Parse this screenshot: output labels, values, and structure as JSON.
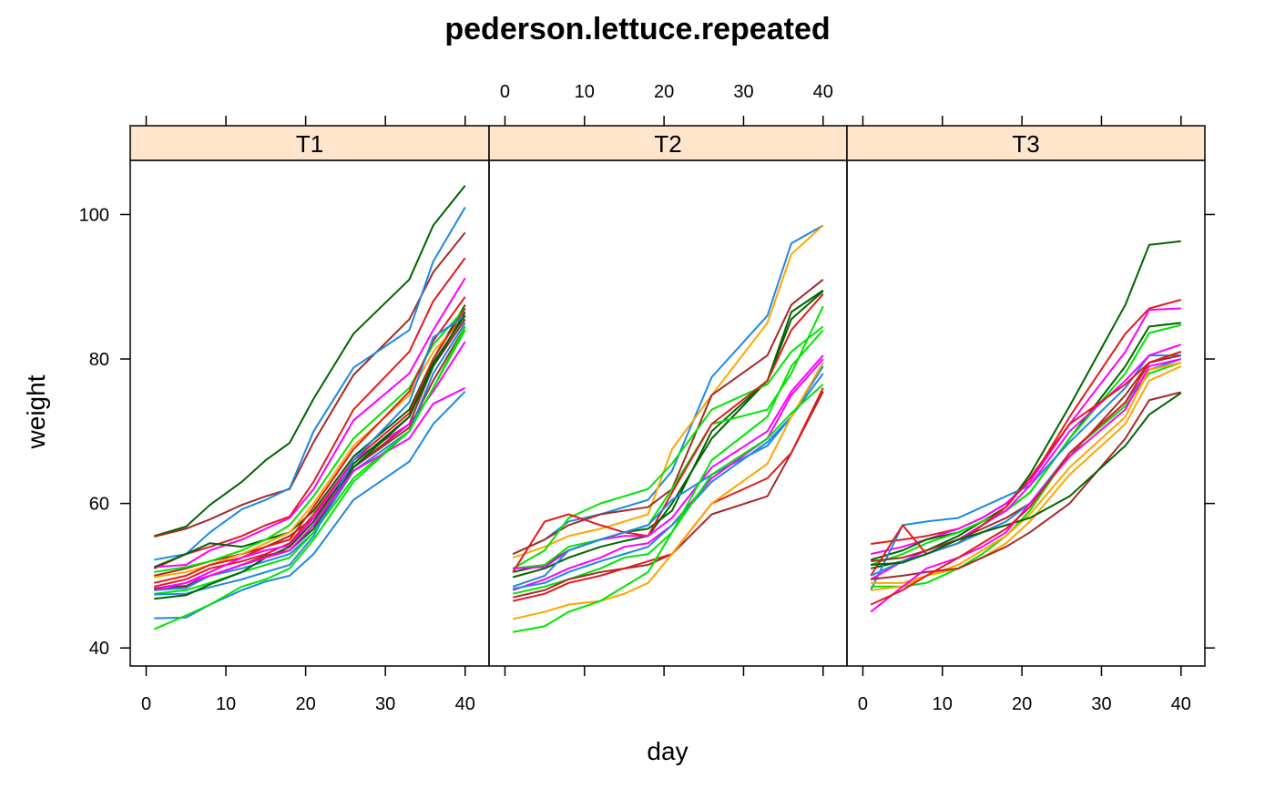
{
  "chart_data": {
    "type": "line",
    "title": "pederson.lettuce.repeated",
    "xlabel": "day",
    "ylabel": "weight",
    "xlim": [
      -2,
      43
    ],
    "ylim": [
      37.5,
      107.5
    ],
    "x_ticks": [
      0,
      10,
      20,
      30,
      40
    ],
    "y_ticks": [
      40,
      60,
      80,
      100
    ],
    "x": [
      1,
      5,
      8,
      12,
      15,
      18,
      21,
      26,
      33,
      36,
      40
    ],
    "palette": {
      "orange": "#FFA500",
      "blue": "#1E88E5",
      "lime": "#00E500",
      "darkgreen": "#006400",
      "brown": "#A52A2A",
      "red": "#E41A1C",
      "magenta": "#FF00FF"
    },
    "panels": [
      {
        "strip": "T1",
        "series": [
          {
            "color": "#006400",
            "values": [
              55.5,
              56.8,
              59.8,
              63,
              66,
              68.4,
              74.5,
              83.5,
              91,
              98.5,
              104
            ]
          },
          {
            "color": "#A52A2A",
            "values": [
              55.4,
              56.5,
              57.8,
              59.8,
              61,
              62,
              68.5,
              77.8,
              85.5,
              92,
              97.5
            ]
          },
          {
            "color": "#1E88E5",
            "values": [
              52.2,
              53,
              56,
              59.2,
              60.5,
              62.1,
              70,
              78.8,
              84,
              93.5,
              101
            ]
          },
          {
            "color": "#E41A1C",
            "values": [
              51,
              53,
              54,
              55.5,
              57,
              58.2,
              63,
              73,
              81,
              88,
              94
            ]
          },
          {
            "color": "#FF00FF",
            "values": [
              51.2,
              51.5,
              53.5,
              55,
              56.5,
              58,
              62,
              71.5,
              78,
              84,
              91.2
            ]
          },
          {
            "color": "#006400",
            "values": [
              51.2,
              53,
              54.5,
              54,
              55,
              56,
              59,
              66.5,
              73,
              80,
              87.5
            ]
          },
          {
            "color": "#A52A2A",
            "values": [
              50,
              51,
              52,
              53,
              54,
              55.5,
              58,
              65,
              71,
              79,
              85.5
            ]
          },
          {
            "color": "#00E500",
            "values": [
              50.5,
              51.2,
              52,
              53.5,
              55,
              57,
              61,
              69,
              76,
              82,
              87
            ]
          },
          {
            "color": "#FFA500",
            "values": [
              49.8,
              50.5,
              51.5,
              53,
              54.5,
              56,
              60,
              68,
              75,
              81,
              86
            ]
          },
          {
            "color": "#E41A1C",
            "values": [
              49,
              50,
              51.5,
              52.5,
              54,
              55,
              59.5,
              67.5,
              75.5,
              82.5,
              88.6
            ]
          },
          {
            "color": "#E41A1C",
            "values": [
              48.5,
              49.5,
              51,
              52,
              53,
              54.5,
              58.5,
              66,
              72.5,
              80,
              87
            ]
          },
          {
            "color": "#FF00FF",
            "values": [
              48.2,
              49,
              50.5,
              52.5,
              53.5,
              54.2,
              58,
              66,
              71,
              75.5,
              82.4
            ]
          },
          {
            "color": "#006400",
            "values": [
              48.2,
              48.6,
              50,
              51.5,
              52.5,
              54,
              57.5,
              65.5,
              72,
              79,
              86.5
            ]
          },
          {
            "color": "#A52A2A",
            "values": [
              48,
              48.5,
              50,
              51.5,
              52.8,
              53.5,
              57,
              65,
              70.5,
              77,
              84.5
            ]
          },
          {
            "color": "#1E88E5",
            "values": [
              48,
              48.3,
              50,
              51,
              52,
              53,
              56,
              64.5,
              70,
              78,
              85
            ]
          },
          {
            "color": "#00E500",
            "values": [
              47.5,
              48,
              49,
              50.5,
              51.5,
              52.5,
              56,
              63.5,
              70,
              76,
              84
            ]
          },
          {
            "color": "#1E88E5",
            "values": [
              47.4,
              47.5,
              48.4,
              49.5,
              50.5,
              51.5,
              55.5,
              66,
              74,
              83,
              86
            ]
          },
          {
            "color": "#006400",
            "values": [
              46.8,
              47.3,
              48.8,
              50.5,
              52.5,
              53.5,
              56.5,
              65,
              72,
              79.5,
              86
            ]
          },
          {
            "color": "#FF00FF",
            "values": [
              48,
              49,
              50,
              51.5,
              52.5,
              53.5,
              57,
              64.5,
              69,
              73.8,
              76
            ]
          },
          {
            "color": "#1E88E5",
            "values": [
              44.1,
              44.2,
              46,
              48,
              49.2,
              50,
              53,
              60.5,
              65.8,
              71,
              75.5
            ]
          },
          {
            "color": "#00E500",
            "values": [
              42.6,
              44.5,
              46,
              48.5,
              49.5,
              51,
              55,
              63,
              70,
              76,
              84.5
            ]
          }
        ]
      },
      {
        "strip": "T2",
        "series": [
          {
            "color": "#1E88E5",
            "values": [
              53,
              55,
              57.5,
              58.5,
              59.5,
              60.5,
              64.5,
              77.5,
              86,
              96,
              98.5
            ]
          },
          {
            "color": "#FFA500",
            "values": [
              52.5,
              54,
              55.5,
              56.5,
              57.5,
              58.5,
              67.5,
              75,
              85,
              94.5,
              98.5
            ]
          },
          {
            "color": "#A52A2A",
            "values": [
              53,
              55,
              57,
              58.5,
              59,
              59.5,
              62,
              75,
              80.5,
              87.5,
              91
            ]
          },
          {
            "color": "#006400",
            "values": [
              50.5,
              51.5,
              53.5,
              55,
              56,
              56.5,
              59,
              70,
              77,
              86.5,
              89.5
            ]
          },
          {
            "color": "#006400",
            "values": [
              49.8,
              51,
              52.5,
              54,
              54.8,
              55.5,
              60,
              69,
              77,
              85.5,
              89.4
            ]
          },
          {
            "color": "#00E500",
            "values": [
              51,
              53.5,
              58,
              60,
              61,
              62,
              65.5,
              73,
              76.5,
              81,
              84.5
            ]
          },
          {
            "color": "#00E500",
            "values": [
              51,
              51.5,
              54,
              55,
              56,
              57,
              62,
              71,
              73,
              78,
              87.3
            ]
          },
          {
            "color": "#E41A1C",
            "values": [
              50.5,
              57.5,
              58.5,
              57,
              56,
              55.5,
              61.5,
              71,
              77,
              84,
              89
            ]
          },
          {
            "color": "#FF00FF",
            "values": [
              51,
              51.2,
              53.5,
              55,
              55.5,
              55.5,
              58,
              65,
              70,
              75.5,
              80.5
            ]
          },
          {
            "color": "#1E88E5",
            "values": [
              48.5,
              50,
              53.5,
              55,
              56,
              57,
              60.5,
              64,
              68,
              72,
              79
            ]
          },
          {
            "color": "#FF00FF",
            "values": [
              48,
              49.5,
              51,
              52.5,
              54,
              54.5,
              57,
              63.5,
              69,
              75,
              80
            ]
          },
          {
            "color": "#1E88E5",
            "values": [
              48.2,
              49,
              50.5,
              52,
              53,
              54,
              57,
              63,
              68.5,
              72,
              78
            ]
          },
          {
            "color": "#00E500",
            "values": [
              47.5,
              48.5,
              49.5,
              51,
              52.5,
              53,
              56,
              66,
              72,
              79,
              84
            ]
          },
          {
            "color": "#A52A2A",
            "values": [
              47,
              48,
              49.5,
              50.5,
              51,
              51.5,
              53,
              58.5,
              61,
              67,
              75.5
            ]
          },
          {
            "color": "#E41A1C",
            "values": [
              46.5,
              47.5,
              49,
              50,
              51,
              52,
              53,
              60,
              63.5,
              67,
              76
            ]
          },
          {
            "color": "#FFA500",
            "values": [
              44,
              45,
              46,
              46.5,
              47.5,
              49,
              53,
              60,
              65.5,
              72,
              79.5
            ]
          },
          {
            "color": "#00E500",
            "values": [
              42.2,
              43,
              45,
              46.5,
              48.5,
              50.5,
              56,
              64,
              69,
              72.5,
              76.5
            ]
          }
        ]
      },
      {
        "strip": "T3",
        "series": [
          {
            "color": "#006400",
            "values": [
              51,
              52,
              53.5,
              55.5,
              57.5,
              59.5,
              64,
              73.5,
              87.5,
              95.8,
              96.3
            ]
          },
          {
            "color": "#E41A1C",
            "values": [
              54.4,
              55,
              55.5,
              56.5,
              58,
              60,
              63,
              72,
              83.5,
              87,
              88.2
            ]
          },
          {
            "color": "#FF00FF",
            "values": [
              53,
              54,
              55,
              56.5,
              58,
              60,
              63,
              71,
              81,
              86.8,
              87
            ]
          },
          {
            "color": "#006400",
            "values": [
              52.2,
              53.5,
              55,
              56,
              57.5,
              59,
              61.5,
              69,
              79,
              84.5,
              85
            ]
          },
          {
            "color": "#00E500",
            "values": [
              51.5,
              53,
              54.5,
              56,
              57.5,
              59,
              61.5,
              69,
              78,
              83.6,
              84.7
            ]
          },
          {
            "color": "#1E88E5",
            "values": [
              48,
              57,
              57.5,
              58,
              59.5,
              61,
              62.5,
              68.5,
              76,
              80.5,
              80.5
            ]
          },
          {
            "color": "#FF00FF",
            "values": [
              49.5,
              52,
              53.5,
              55,
              57,
              59,
              62.5,
              70,
              77,
              80.5,
              82
            ]
          },
          {
            "color": "#E41A1C",
            "values": [
              50,
              57,
              53,
              54.5,
              57,
              59.5,
              63.5,
              71,
              76.5,
              79.5,
              81
            ]
          },
          {
            "color": "#A52A2A",
            "values": [
              52,
              52.5,
              53.5,
              55,
              56.5,
              58,
              60,
              66.5,
              75,
              79.5,
              80.5
            ]
          },
          {
            "color": "#1E88E5",
            "values": [
              50,
              52,
              53,
              54.5,
              56,
              57.5,
              60,
              67,
              74,
              78.5,
              80
            ]
          },
          {
            "color": "#00E500",
            "values": [
              48.5,
              48.5,
              49,
              51,
              53,
              55.5,
              59,
              67,
              73.5,
              78,
              79.5
            ]
          },
          {
            "color": "#FFA500",
            "values": [
              48,
              48.5,
              50,
              51.5,
              53.5,
              55.5,
              58.5,
              65,
              72,
              78.5,
              79.5
            ]
          },
          {
            "color": "#FFA500",
            "values": [
              49,
              49,
              50,
              51,
              52.5,
              54.5,
              57.5,
              64,
              71,
              77,
              79
            ]
          },
          {
            "color": "#A52A2A",
            "values": [
              49.5,
              50,
              50.5,
              51,
              52.5,
              54,
              56,
              60,
              69,
              74.3,
              75.4
            ]
          },
          {
            "color": "#006400",
            "values": [
              51.5,
              51.8,
              53,
              55,
              56,
              57,
              58,
              61,
              68,
              72.3,
              75.3
            ]
          },
          {
            "color": "#FF00FF",
            "values": [
              45,
              48.5,
              51,
              52.5,
              54,
              56,
              60,
              66.5,
              73,
              79,
              80
            ]
          },
          {
            "color": "#E41A1C",
            "values": [
              46,
              48,
              50,
              52.5,
              54.5,
              56.5,
              59.5,
              67,
              74,
              79.5,
              81
            ]
          }
        ]
      }
    ]
  }
}
